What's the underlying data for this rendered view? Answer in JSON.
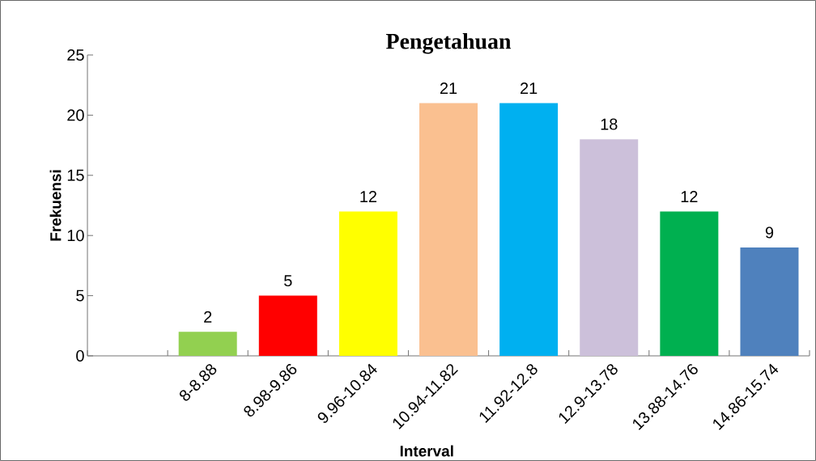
{
  "chart_data": {
    "type": "bar",
    "title": "Pengetahuan",
    "xlabel": "Interval",
    "ylabel": "Frekuensi",
    "categories": [
      null,
      "8-8.88",
      "8.98-9.86",
      "9.96-10.84",
      "10.94-11.82",
      "11.92-12.8",
      "12.9-13.78",
      "13.88-14.76",
      "14.86-15.74"
    ],
    "values": [
      null,
      2,
      5,
      12,
      21,
      21,
      18,
      12,
      9
    ],
    "colors": [
      null,
      "#92d050",
      "#ff0000",
      "#ffff00",
      "#fac090",
      "#00b0f0",
      "#ccc0da",
      "#00b050",
      "#4f81bd"
    ],
    "ylim": [
      0,
      25
    ],
    "yticks": [
      0,
      5,
      10,
      15,
      20,
      25
    ],
    "data_labels": true,
    "grid": false
  }
}
